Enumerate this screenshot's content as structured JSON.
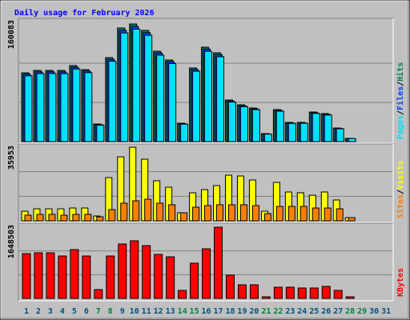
{
  "chart_data": [
    {
      "type": "bar",
      "title": "Daily usage for February 2026",
      "ylim": [
        0,
        160083
      ],
      "yticks": [
        160083
      ],
      "legend_separator": "/",
      "series": [
        {
          "name": "Hits",
          "color": "#00805c",
          "values": [
            93650,
            96900,
            96900,
            96900,
            103450,
            98000,
            23960,
            114340,
            154640,
            160083,
            151370,
            123060,
            111080,
            25050,
            100190,
            128500,
            120880,
            56630,
            50090,
            45740,
            10890,
            43560,
            26140,
            26140,
            40290,
            38110,
            18510,
            4360,
            null,
            null,
            null
          ]
        },
        {
          "name": "Files",
          "color": "#0040ff",
          "values": [
            91800,
            94900,
            95000,
            94800,
            101300,
            96100,
            23200,
            112000,
            151500,
            156800,
            148300,
            120600,
            108800,
            24300,
            98100,
            125900,
            118400,
            55200,
            48800,
            44600,
            10500,
            42400,
            25400,
            25500,
            39300,
            37100,
            18000,
            4200,
            null,
            null,
            null
          ]
        },
        {
          "name": "Pages",
          "color": "#00e0ff",
          "values": [
            89500,
            92600,
            92700,
            92500,
            98800,
            93800,
            22500,
            109400,
            147900,
            153100,
            144800,
            117700,
            106200,
            23700,
            95800,
            122900,
            115600,
            53800,
            47600,
            43500,
            10200,
            41400,
            24800,
            24900,
            38300,
            36200,
            17500,
            4100,
            null,
            null,
            null
          ]
        }
      ]
    },
    {
      "type": "bar",
      "ylim": [
        0,
        35953
      ],
      "yticks": [
        35953
      ],
      "legend_separator": "/",
      "series": [
        {
          "name": "Visits",
          "color": "#ffff00",
          "values": [
            4690,
            5860,
            5860,
            5860,
            6250,
            6250,
            2340,
            21100,
            31260,
            35953,
            30090,
            19540,
            16410,
            3910,
            13680,
            15240,
            17190,
            22270,
            21880,
            19930,
            4690,
            18760,
            14070,
            13680,
            12500,
            14070,
            10160,
            1560,
            null,
            null,
            null
          ]
        },
        {
          "name": "Sites",
          "color": "#ff8000",
          "values": [
            2740,
            3130,
            3130,
            2740,
            3130,
            3130,
            1950,
            5470,
            8600,
            9770,
            10550,
            8600,
            7820,
            3910,
            6640,
            7430,
            7820,
            7820,
            7820,
            7430,
            3520,
            7030,
            7030,
            7030,
            6250,
            6250,
            5860,
            1560,
            null,
            null,
            null
          ]
        }
      ]
    },
    {
      "type": "bar",
      "ylim": [
        0,
        1648503
      ],
      "yticks": [
        1648503
      ],
      "legend_separator": "/",
      "categories": [
        "1",
        "2",
        "3",
        "4",
        "5",
        "6",
        "7",
        "8",
        "9",
        "10",
        "11",
        "12",
        "13",
        "14",
        "15",
        "16",
        "17",
        "18",
        "19",
        "20",
        "21",
        "22",
        "23",
        "24",
        "25",
        "26",
        "27",
        "28",
        "29",
        "30",
        "31"
      ],
      "x_label_colors": [
        "#00507f",
        "#00507f",
        "#00507f",
        "#00507f",
        "#00507f",
        "#00507f",
        "#008040",
        "#008040",
        "#00507f",
        "#00507f",
        "#00507f",
        "#00507f",
        "#00507f",
        "#008040",
        "#008040",
        "#00507f",
        "#00507f",
        "#00507f",
        "#00507f",
        "#00507f",
        "#008040",
        "#008040",
        "#00507f",
        "#00507f",
        "#00507f",
        "#00507f",
        "#00507f",
        "#008040",
        "#008040",
        "#00507f",
        "#00507f"
      ],
      "series": [
        {
          "name": "KBytes",
          "color": "#ff0000",
          "values": [
            1037260,
            1055780,
            1055780,
            981690,
            1129870,
            981690,
            203750,
            981690,
            1259530,
            1333620,
            1222480,
            1018740,
            963170,
            185220,
            814990,
            1148390,
            1648503,
            537150,
            314880,
            314880,
            37040,
            259320,
            259320,
            240800,
            240800,
            277840,
            185220,
            37040,
            null,
            null,
            null
          ]
        }
      ]
    }
  ]
}
